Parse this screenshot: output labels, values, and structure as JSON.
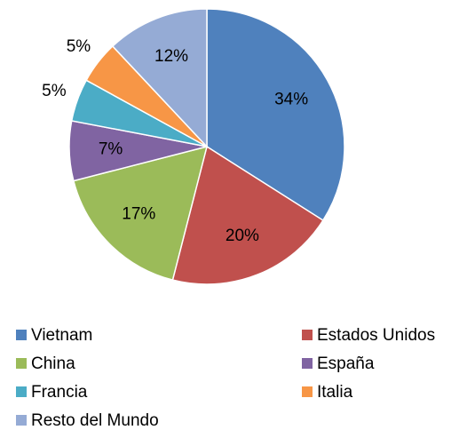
{
  "chart_data": {
    "type": "pie",
    "categories": [
      "Vietnam",
      "Estados Unidos",
      "China",
      "España",
      "Francia",
      "Italia",
      "Resto del Mundo"
    ],
    "values": [
      34,
      20,
      17,
      7,
      5,
      5,
      12
    ],
    "value_labels": [
      "34%",
      "20%",
      "17%",
      "7%",
      "5%",
      "5%",
      "12%"
    ],
    "colors": [
      "#4f81bd",
      "#c0504d",
      "#9bbb59",
      "#8064a2",
      "#4bacc6",
      "#f79646",
      "#95abd5"
    ],
    "legend": "bottom"
  }
}
